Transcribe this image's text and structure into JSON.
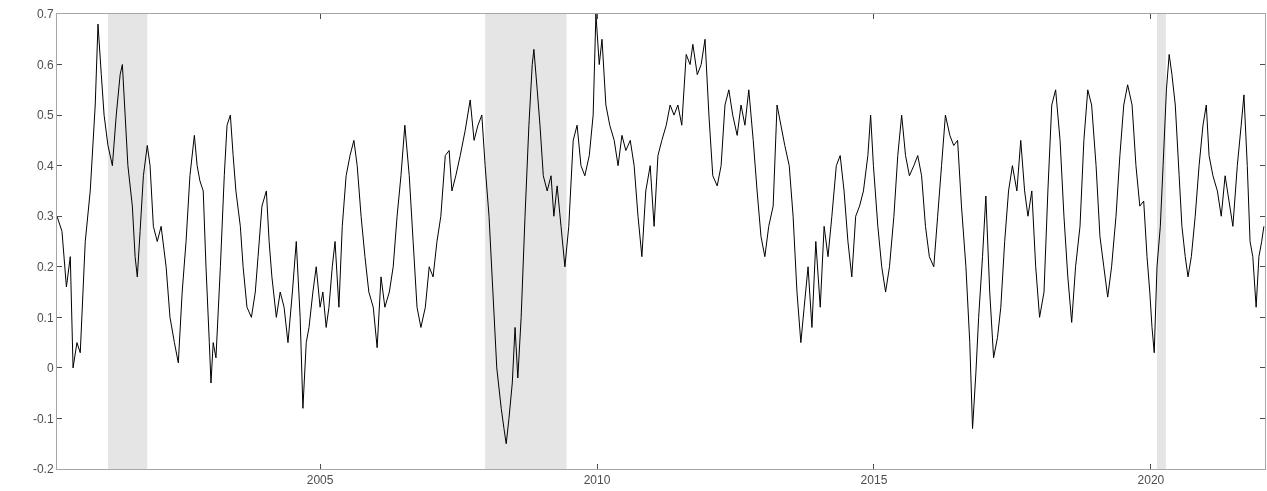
{
  "chart_data": {
    "type": "line",
    "xlim": [
      2000.25,
      2022.06
    ],
    "ylim": [
      -0.2,
      0.7
    ],
    "xticks": [
      2005,
      2010,
      2015,
      2020
    ],
    "yticks": [
      -0.2,
      -0.1,
      0,
      0.1,
      0.2,
      0.3,
      0.4,
      0.5,
      0.6,
      0.7
    ],
    "grid": false,
    "marker": "none",
    "line_style": "solid",
    "bands": [
      {
        "axis": "x",
        "from": 2001.17,
        "to": 2001.88,
        "color": "#e5e5e5"
      },
      {
        "axis": "x",
        "from": 2007.98,
        "to": 2009.45,
        "color": "#e5e5e5"
      },
      {
        "axis": "x",
        "from": 2020.11,
        "to": 2020.27,
        "color": "#e5e5e5"
      }
    ],
    "x": [
      2000.25,
      2000.34,
      2000.42,
      2000.49,
      2000.54,
      2000.61,
      2000.67,
      2000.76,
      2000.85,
      2000.94,
      2000.99,
      2001.05,
      2001.1,
      2001.17,
      2001.25,
      2001.32,
      2001.39,
      2001.43,
      2001.48,
      2001.53,
      2001.61,
      2001.66,
      2001.7,
      2001.75,
      2001.81,
      2001.88,
      2001.93,
      2001.99,
      2002.06,
      2002.13,
      2002.22,
      2002.29,
      2002.37,
      2002.44,
      2002.51,
      2002.58,
      2002.65,
      2002.73,
      2002.78,
      2002.83,
      2002.89,
      2002.94,
      2003.0,
      2003.03,
      2003.07,
      2003.12,
      2003.2,
      2003.27,
      2003.32,
      2003.38,
      2003.43,
      2003.48,
      2003.56,
      2003.61,
      2003.68,
      2003.76,
      2003.83,
      2003.88,
      2003.95,
      2004.03,
      2004.08,
      2004.13,
      2004.21,
      2004.28,
      2004.35,
      2004.42,
      2004.5,
      2004.57,
      2004.64,
      2004.69,
      2004.75,
      2004.8,
      2004.87,
      2004.93,
      2005.0,
      2005.05,
      2005.11,
      2005.16,
      2005.22,
      2005.27,
      2005.34,
      2005.4,
      2005.47,
      2005.54,
      2005.61,
      2005.67,
      2005.74,
      2005.81,
      2005.88,
      2005.96,
      2006.03,
      2006.1,
      2006.17,
      2006.25,
      2006.32,
      2006.39,
      2006.46,
      2006.53,
      2006.61,
      2006.68,
      2006.75,
      2006.82,
      2006.9,
      2006.97,
      2007.04,
      2007.11,
      2007.18,
      2007.26,
      2007.33,
      2007.38,
      2007.45,
      2007.53,
      2007.62,
      2007.71,
      2007.78,
      2007.85,
      2007.92,
      2007.98,
      2008.05,
      2008.12,
      2008.19,
      2008.27,
      2008.32,
      2008.36,
      2008.41,
      2008.47,
      2008.52,
      2008.57,
      2008.63,
      2008.7,
      2008.77,
      2008.83,
      2008.86,
      2008.92,
      2008.97,
      2009.03,
      2009.1,
      2009.17,
      2009.22,
      2009.28,
      2009.35,
      2009.42,
      2009.49,
      2009.57,
      2009.64,
      2009.71,
      2009.78,
      2009.86,
      2009.93,
      2009.98,
      2010.04,
      2010.09,
      2010.16,
      2010.23,
      2010.31,
      2010.38,
      2010.45,
      2010.52,
      2010.6,
      2010.67,
      2010.74,
      2010.81,
      2010.88,
      2010.96,
      2011.03,
      2011.1,
      2011.17,
      2011.25,
      2011.32,
      2011.39,
      2011.46,
      2011.53,
      2011.61,
      2011.68,
      2011.73,
      2011.81,
      2011.88,
      2011.95,
      2012.02,
      2012.09,
      2012.17,
      2012.24,
      2012.31,
      2012.38,
      2012.45,
      2012.53,
      2012.6,
      2012.67,
      2012.74,
      2012.82,
      2012.89,
      2012.96,
      2013.03,
      2013.1,
      2013.18,
      2013.25,
      2013.32,
      2013.39,
      2013.47,
      2013.54,
      2013.61,
      2013.68,
      2013.74,
      2013.81,
      2013.88,
      2013.95,
      2014.03,
      2014.1,
      2014.17,
      2014.24,
      2014.32,
      2014.39,
      2014.46,
      2014.53,
      2014.6,
      2014.67,
      2014.74,
      2014.81,
      2014.89,
      2014.94,
      2014.99,
      2015.07,
      2015.14,
      2015.21,
      2015.28,
      2015.36,
      2015.43,
      2015.5,
      2015.57,
      2015.64,
      2015.72,
      2015.79,
      2015.86,
      2015.93,
      2016.0,
      2016.08,
      2016.15,
      2016.22,
      2016.29,
      2016.37,
      2016.44,
      2016.51,
      2016.58,
      2016.66,
      2016.73,
      2016.78,
      2016.84,
      2016.89,
      2016.96,
      2017.02,
      2017.09,
      2017.16,
      2017.23,
      2017.29,
      2017.36,
      2017.43,
      2017.5,
      2017.58,
      2017.65,
      2017.72,
      2017.78,
      2017.85,
      2017.92,
      2017.99,
      2018.07,
      2018.14,
      2018.21,
      2018.28,
      2018.36,
      2018.43,
      2018.5,
      2018.57,
      2018.64,
      2018.72,
      2018.79,
      2018.86,
      2018.93,
      2019.01,
      2019.08,
      2019.15,
      2019.22,
      2019.29,
      2019.37,
      2019.44,
      2019.51,
      2019.58,
      2019.66,
      2019.73,
      2019.8,
      2019.87,
      2019.93,
      2019.98,
      2020.02,
      2020.06,
      2020.11,
      2020.17,
      2020.22,
      2020.28,
      2020.33,
      2020.38,
      2020.44,
      2020.51,
      2020.56,
      2020.62,
      2020.67,
      2020.73,
      2020.8,
      2020.87,
      2020.94,
      2021.0,
      2021.05,
      2021.12,
      2021.2,
      2021.27,
      2021.34,
      2021.41,
      2021.48,
      2021.56,
      2021.63,
      2021.68,
      2021.74,
      2021.79,
      2021.84,
      2021.9,
      2021.95,
      2022.0,
      2022.04
    ],
    "series": [
      {
        "color": "#000000",
        "values": [
          0.3,
          0.27,
          0.16,
          0.22,
          0.0,
          0.05,
          0.03,
          0.25,
          0.35,
          0.52,
          0.68,
          0.58,
          0.5,
          0.44,
          0.4,
          0.5,
          0.58,
          0.6,
          0.5,
          0.4,
          0.32,
          0.22,
          0.18,
          0.27,
          0.38,
          0.44,
          0.4,
          0.28,
          0.25,
          0.28,
          0.2,
          0.1,
          0.05,
          0.01,
          0.15,
          0.25,
          0.38,
          0.46,
          0.4,
          0.37,
          0.35,
          0.2,
          0.05,
          -0.03,
          0.05,
          0.02,
          0.2,
          0.38,
          0.48,
          0.5,
          0.42,
          0.35,
          0.28,
          0.2,
          0.12,
          0.1,
          0.15,
          0.22,
          0.32,
          0.35,
          0.25,
          0.18,
          0.1,
          0.15,
          0.12,
          0.05,
          0.15,
          0.25,
          0.1,
          -0.08,
          0.05,
          0.08,
          0.15,
          0.2,
          0.12,
          0.15,
          0.08,
          0.12,
          0.2,
          0.25,
          0.12,
          0.28,
          0.38,
          0.42,
          0.45,
          0.4,
          0.3,
          0.22,
          0.15,
          0.12,
          0.04,
          0.18,
          0.12,
          0.15,
          0.2,
          0.3,
          0.38,
          0.48,
          0.38,
          0.25,
          0.12,
          0.08,
          0.12,
          0.2,
          0.18,
          0.25,
          0.3,
          0.42,
          0.43,
          0.35,
          0.38,
          0.42,
          0.47,
          0.53,
          0.45,
          0.48,
          0.5,
          0.4,
          0.3,
          0.15,
          0.0,
          -0.08,
          -0.12,
          -0.15,
          -0.1,
          -0.03,
          0.08,
          -0.02,
          0.1,
          0.3,
          0.48,
          0.6,
          0.63,
          0.55,
          0.48,
          0.38,
          0.35,
          0.38,
          0.3,
          0.36,
          0.28,
          0.2,
          0.28,
          0.45,
          0.48,
          0.4,
          0.38,
          0.42,
          0.5,
          0.7,
          0.6,
          0.65,
          0.52,
          0.48,
          0.45,
          0.4,
          0.46,
          0.43,
          0.45,
          0.4,
          0.3,
          0.22,
          0.35,
          0.4,
          0.28,
          0.42,
          0.45,
          0.48,
          0.52,
          0.5,
          0.52,
          0.48,
          0.62,
          0.6,
          0.64,
          0.58,
          0.6,
          0.65,
          0.5,
          0.38,
          0.36,
          0.4,
          0.52,
          0.55,
          0.5,
          0.46,
          0.52,
          0.48,
          0.55,
          0.45,
          0.35,
          0.26,
          0.22,
          0.28,
          0.32,
          0.52,
          0.48,
          0.44,
          0.4,
          0.3,
          0.15,
          0.05,
          0.12,
          0.2,
          0.08,
          0.25,
          0.12,
          0.28,
          0.22,
          0.3,
          0.4,
          0.42,
          0.35,
          0.25,
          0.18,
          0.3,
          0.32,
          0.35,
          0.42,
          0.5,
          0.4,
          0.28,
          0.2,
          0.15,
          0.2,
          0.3,
          0.42,
          0.5,
          0.42,
          0.38,
          0.4,
          0.42,
          0.38,
          0.28,
          0.22,
          0.2,
          0.3,
          0.4,
          0.5,
          0.46,
          0.44,
          0.45,
          0.32,
          0.2,
          0.05,
          -0.12,
          -0.01,
          0.1,
          0.22,
          0.34,
          0.15,
          0.02,
          0.06,
          0.12,
          0.25,
          0.35,
          0.4,
          0.35,
          0.45,
          0.35,
          0.3,
          0.35,
          0.2,
          0.1,
          0.15,
          0.35,
          0.52,
          0.55,
          0.45,
          0.3,
          0.18,
          0.09,
          0.2,
          0.28,
          0.45,
          0.55,
          0.52,
          0.4,
          0.26,
          0.2,
          0.14,
          0.2,
          0.3,
          0.42,
          0.52,
          0.56,
          0.52,
          0.4,
          0.32,
          0.33,
          0.22,
          0.15,
          0.08,
          0.03,
          0.2,
          0.28,
          0.4,
          0.55,
          0.62,
          0.58,
          0.52,
          0.38,
          0.28,
          0.22,
          0.18,
          0.22,
          0.3,
          0.4,
          0.48,
          0.52,
          0.42,
          0.38,
          0.35,
          0.3,
          0.38,
          0.33,
          0.28,
          0.4,
          0.48,
          0.54,
          0.4,
          0.25,
          0.22,
          0.12,
          0.22,
          0.25,
          0.28
        ]
      }
    ]
  }
}
